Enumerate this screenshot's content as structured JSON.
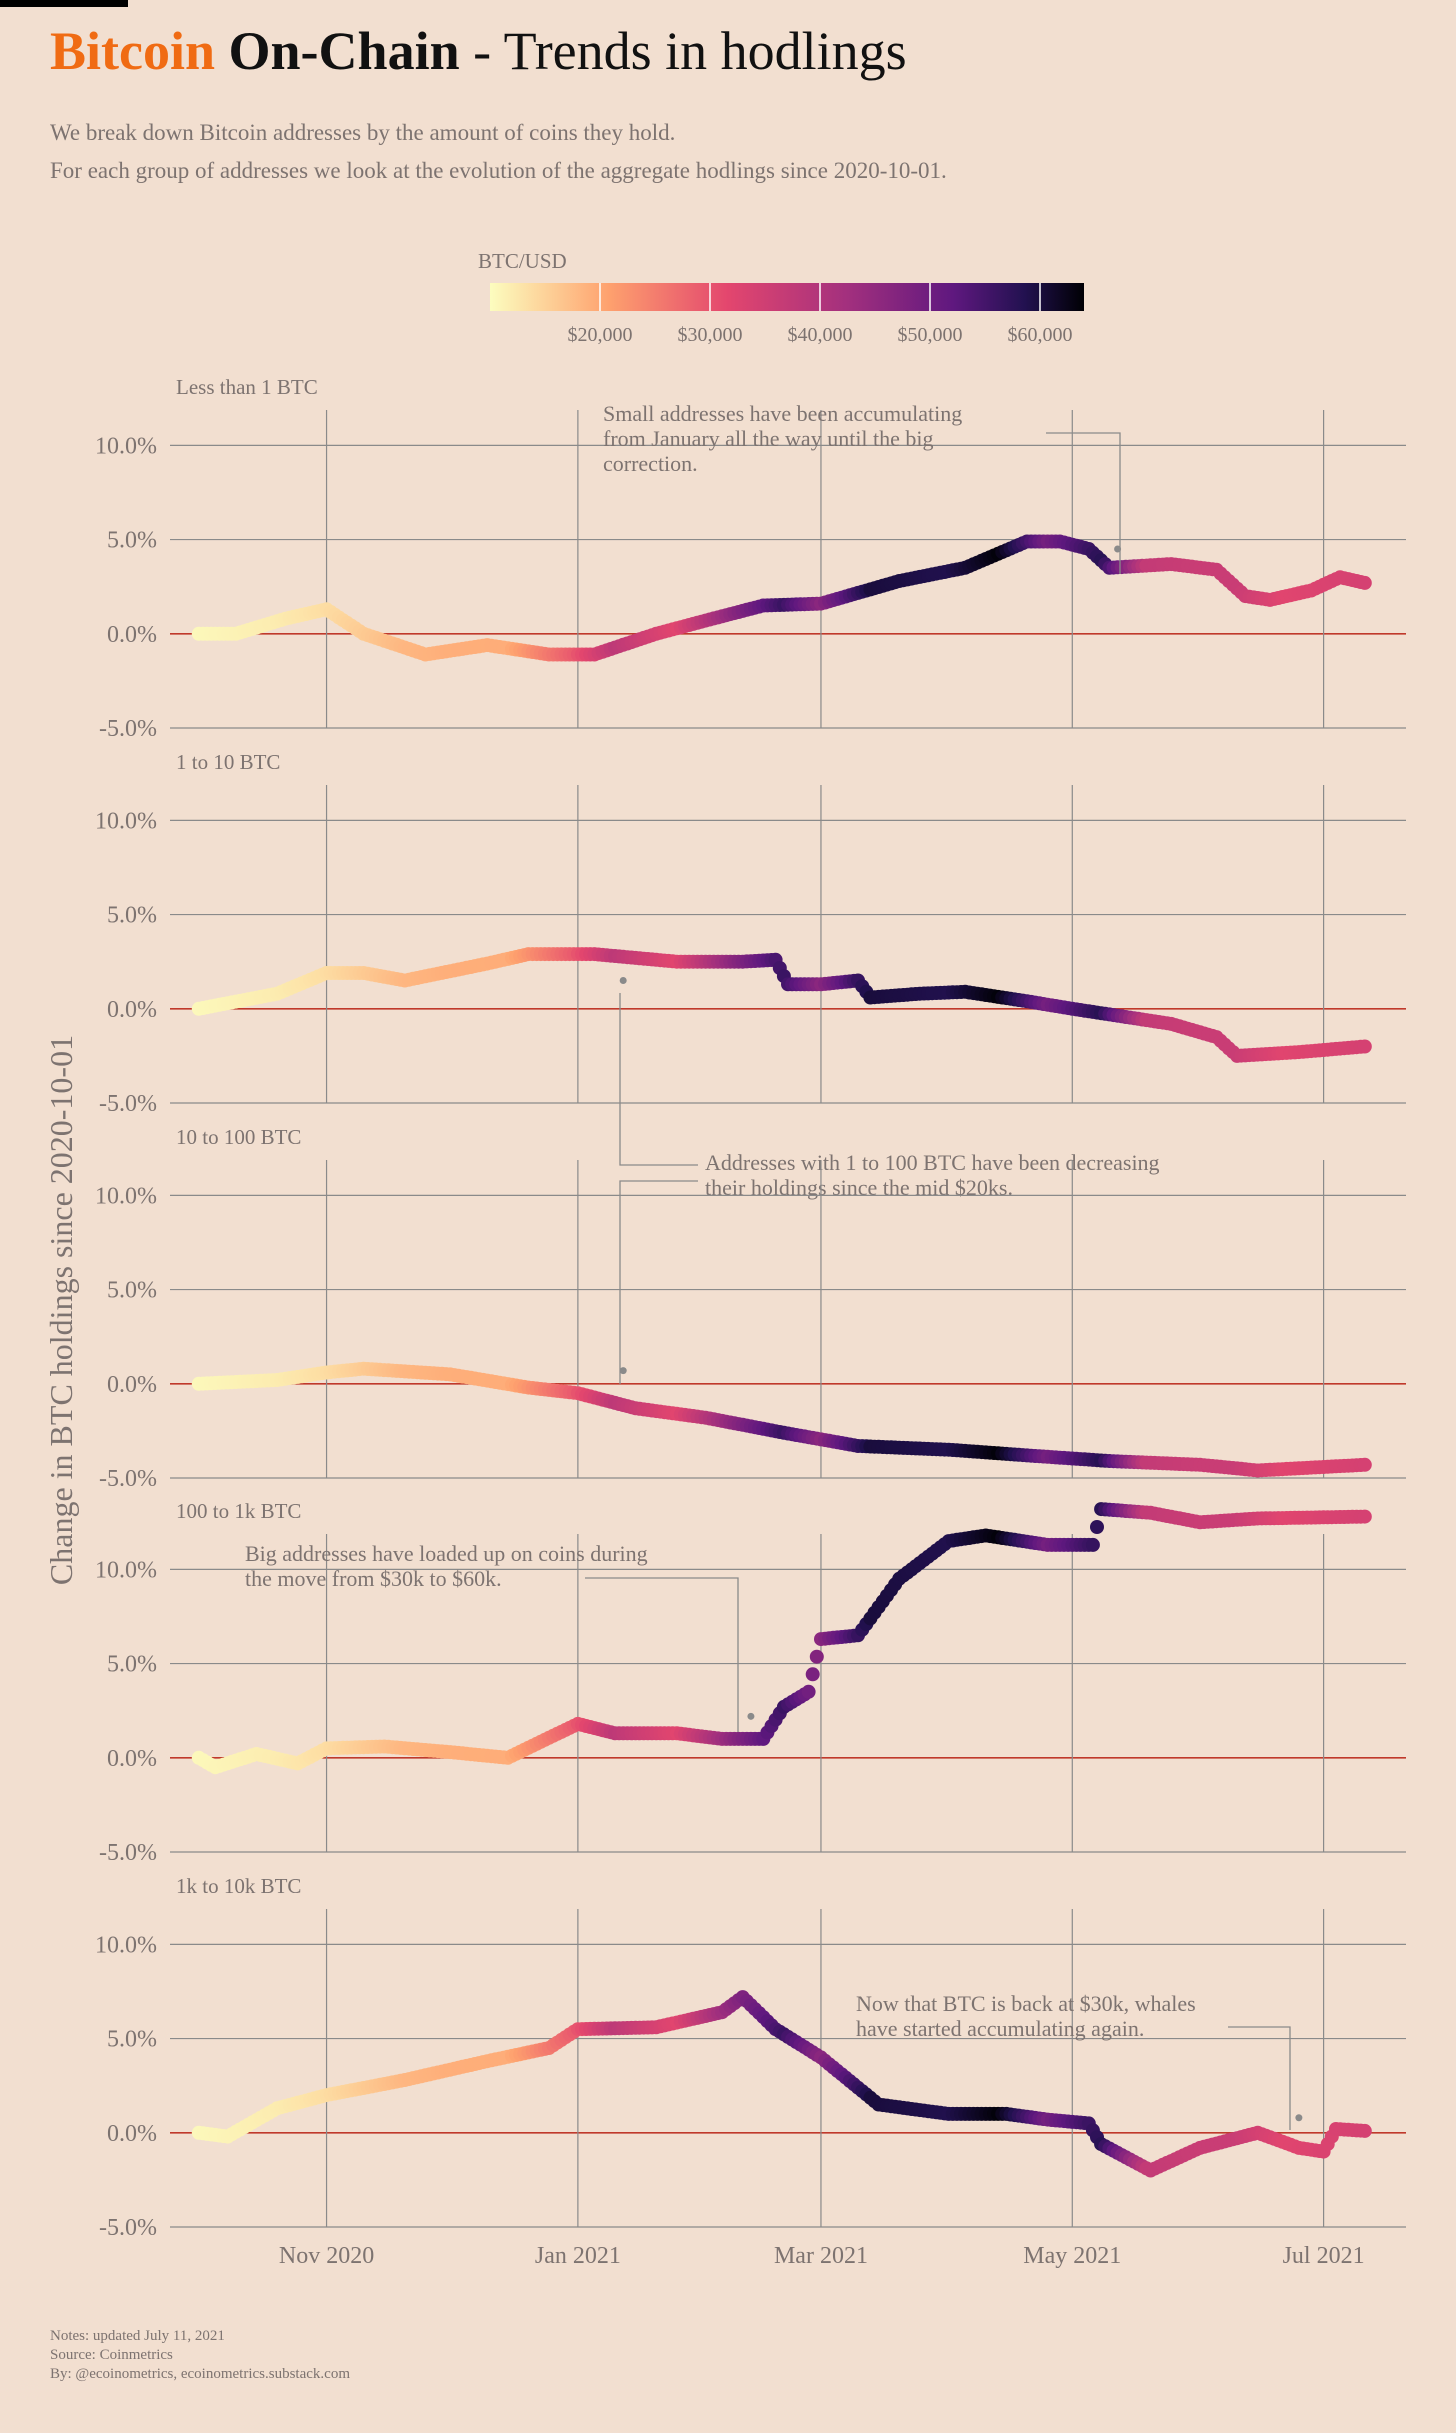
{
  "header": {
    "title_brand": "Bitcoin",
    "title_series": "On-Chain",
    "title_rest": " - Trends in hodlings",
    "subtitle_line1": "We break down Bitcoin addresses by the amount of coins they hold.",
    "subtitle_line2": "For each group of addresses we look at the evolution of the aggregate hodlings since 2020-10-01."
  },
  "footer": {
    "notes": "Notes: updated July 11, 2021",
    "source": "Source: Coinmetrics",
    "by": "By: @ecoinometrics, ecoinometrics.substack.com"
  },
  "colors": {
    "background": "#f2dfd0",
    "brand": "#f06b13",
    "zero_line": "#c0392b",
    "grid": "#8a8a8a",
    "muted_text": "#7d7370"
  },
  "chart_data": {
    "type": "scatter",
    "ylabel": "Change in BTC holdings since 2020-10-01",
    "color_scale": {
      "label": "BTC/USD",
      "palette": "magma-reversed",
      "range": [
        10000,
        64000
      ],
      "ticks": [
        "$20,000",
        "$30,000",
        "$40,000",
        "$50,000",
        "$60,000"
      ],
      "tick_values": [
        20000,
        30000,
        40000,
        50000,
        60000
      ]
    },
    "x_ticks": [
      "Nov 2020",
      "Jan 2021",
      "Mar 2021",
      "May 2021",
      "Jul 2021"
    ],
    "x_tick_dates": [
      "2020-11-01",
      "2021-01-01",
      "2021-03-01",
      "2021-05-01",
      "2021-07-01"
    ],
    "x_range": [
      "2020-09-24",
      "2021-07-21"
    ],
    "ylim": [
      -5,
      14
    ],
    "y_ticks": [
      "-5.0%",
      "0.0%",
      "5.0%",
      "10.0%"
    ],
    "y_tick_values": [
      -5,
      0,
      5,
      10
    ],
    "price_series": {
      "name": "BTC/USD",
      "points": [
        [
          "2020-10-01",
          10600
        ],
        [
          "2020-10-20",
          12000
        ],
        [
          "2020-11-01",
          13700
        ],
        [
          "2020-11-20",
          18200
        ],
        [
          "2020-12-01",
          19200
        ],
        [
          "2020-12-15",
          19400
        ],
        [
          "2020-12-31",
          29000
        ],
        [
          "2021-01-10",
          38000
        ],
        [
          "2021-01-25",
          32000
        ],
        [
          "2021-02-08",
          46000
        ],
        [
          "2021-02-20",
          56000
        ],
        [
          "2021-03-01",
          46000
        ],
        [
          "2021-03-13",
          60000
        ],
        [
          "2021-04-01",
          58800
        ],
        [
          "2021-04-13",
          63500
        ],
        [
          "2021-04-25",
          49000
        ],
        [
          "2021-05-08",
          58000
        ],
        [
          "2021-05-12",
          50000
        ],
        [
          "2021-05-19",
          37000
        ],
        [
          "2021-06-01",
          36000
        ],
        [
          "2021-06-10",
          36000
        ],
        [
          "2021-06-22",
          32000
        ],
        [
          "2021-07-05",
          33500
        ],
        [
          "2021-07-11",
          34000
        ]
      ]
    },
    "panels": [
      {
        "label": "Less than 1 BTC",
        "points": [
          [
            "2020-10-01",
            0
          ],
          [
            "2020-10-10",
            0
          ],
          [
            "2020-10-22",
            0.8
          ],
          [
            "2020-11-01",
            1.3
          ],
          [
            "2020-11-10",
            0
          ],
          [
            "2020-11-25",
            -1.1
          ],
          [
            "2020-12-10",
            -0.6
          ],
          [
            "2020-12-25",
            -1.1
          ],
          [
            "2021-01-05",
            -1.1
          ],
          [
            "2021-01-20",
            0
          ],
          [
            "2021-02-01",
            0.7
          ],
          [
            "2021-02-15",
            1.5
          ],
          [
            "2021-03-01",
            1.6
          ],
          [
            "2021-03-20",
            2.8
          ],
          [
            "2021-04-05",
            3.5
          ],
          [
            "2021-04-20",
            4.9
          ],
          [
            "2021-04-28",
            4.9
          ],
          [
            "2021-05-05",
            4.5
          ],
          [
            "2021-05-10",
            3.5
          ],
          [
            "2021-05-25",
            3.7
          ],
          [
            "2021-06-05",
            3.4
          ],
          [
            "2021-06-12",
            2
          ],
          [
            "2021-06-18",
            1.8
          ],
          [
            "2021-06-28",
            2.3
          ],
          [
            "2021-07-05",
            3
          ],
          [
            "2021-07-11",
            2.7
          ]
        ],
        "annotation": {
          "text_lines": [
            "Small addresses have been accumulating",
            "from January all the way until the big",
            "correction."
          ],
          "target": [
            "2021-05-12",
            4.5
          ]
        }
      },
      {
        "label": "1 to 10 BTC",
        "points": [
          [
            "2020-10-01",
            0
          ],
          [
            "2020-10-20",
            0.8
          ],
          [
            "2020-11-01",
            1.9
          ],
          [
            "2020-11-10",
            1.9
          ],
          [
            "2020-11-20",
            1.5
          ],
          [
            "2020-12-10",
            2.4
          ],
          [
            "2020-12-20",
            2.9
          ],
          [
            "2021-01-05",
            2.9
          ],
          [
            "2021-01-25",
            2.5
          ],
          [
            "2021-02-10",
            2.5
          ],
          [
            "2021-02-18",
            2.6
          ],
          [
            "2021-02-21",
            1.3
          ],
          [
            "2021-03-01",
            1.3
          ],
          [
            "2021-03-10",
            1.5
          ],
          [
            "2021-03-13",
            0.6
          ],
          [
            "2021-03-25",
            0.8
          ],
          [
            "2021-04-05",
            0.9
          ],
          [
            "2021-04-20",
            0.4
          ],
          [
            "2021-05-01",
            0
          ],
          [
            "2021-05-10",
            -0.3
          ],
          [
            "2021-05-25",
            -0.8
          ],
          [
            "2021-06-05",
            -1.5
          ],
          [
            "2021-06-10",
            -2.5
          ],
          [
            "2021-06-25",
            -2.3
          ],
          [
            "2021-07-11",
            -2
          ]
        ],
        "annotation": {
          "text_lines": [
            "Addresses with 1 to 100 BTC have been decreasing",
            "their holdings since the mid $20ks."
          ],
          "target": [
            "2021-01-12",
            1.5
          ]
        }
      },
      {
        "label": "10 to 100 BTC",
        "points": [
          [
            "2020-10-01",
            0
          ],
          [
            "2020-10-20",
            0.2
          ],
          [
            "2020-11-01",
            0.6
          ],
          [
            "2020-11-10",
            0.8
          ],
          [
            "2020-12-01",
            0.5
          ],
          [
            "2020-12-20",
            -0.2
          ],
          [
            "2021-01-01",
            -0.5
          ],
          [
            "2021-01-15",
            -1.3
          ],
          [
            "2021-02-01",
            -1.8
          ],
          [
            "2021-02-20",
            -2.6
          ],
          [
            "2021-03-10",
            -3.3
          ],
          [
            "2021-04-01",
            -3.5
          ],
          [
            "2021-04-20",
            -3.8
          ],
          [
            "2021-05-10",
            -4.1
          ],
          [
            "2021-06-01",
            -4.3
          ],
          [
            "2021-06-15",
            -4.6
          ],
          [
            "2021-07-11",
            -4.3
          ]
        ],
        "annotation": {
          "text_lines": [
            "Addresses with 1 to 100 BTC have been decreasing",
            "their holdings since the mid $20ks."
          ],
          "target": [
            "2021-01-12",
            0.7
          ]
        }
      },
      {
        "label": "100 to 1k BTC",
        "points": [
          [
            "2020-10-01",
            0
          ],
          [
            "2020-10-05",
            -0.5
          ],
          [
            "2020-10-15",
            0.2
          ],
          [
            "2020-10-25",
            -0.3
          ],
          [
            "2020-11-01",
            0.5
          ],
          [
            "2020-11-15",
            0.6
          ],
          [
            "2020-12-01",
            0.3
          ],
          [
            "2020-12-15",
            0
          ],
          [
            "2021-01-01",
            1.8
          ],
          [
            "2021-01-10",
            1.3
          ],
          [
            "2021-01-25",
            1.3
          ],
          [
            "2021-02-05",
            1
          ],
          [
            "2021-02-15",
            1
          ],
          [
            "2021-02-20",
            2.7
          ],
          [
            "2021-02-26",
            3.5
          ],
          [
            "2021-03-01",
            6.3
          ],
          [
            "2021-03-10",
            6.5
          ],
          [
            "2021-03-20",
            9.5
          ],
          [
            "2021-04-01",
            11.5
          ],
          [
            "2021-04-10",
            11.8
          ],
          [
            "2021-04-25",
            11.3
          ],
          [
            "2021-05-01",
            11.3
          ],
          [
            "2021-05-06",
            11.3
          ],
          [
            "2021-05-08",
            13.2
          ],
          [
            "2021-05-20",
            13
          ],
          [
            "2021-06-01",
            12.5
          ],
          [
            "2021-06-15",
            12.7
          ],
          [
            "2021-07-11",
            12.8
          ]
        ],
        "annotation": {
          "text_lines": [
            "Big addresses have loaded up on coins during",
            "the move from $30k to $60k."
          ],
          "target": [
            "2021-02-12",
            2.2
          ]
        }
      },
      {
        "label": "1k to 10k BTC",
        "points": [
          [
            "2020-10-01",
            0
          ],
          [
            "2020-10-08",
            -0.2
          ],
          [
            "2020-10-20",
            1.3
          ],
          [
            "2020-11-01",
            2
          ],
          [
            "2020-11-20",
            2.8
          ],
          [
            "2020-12-10",
            3.8
          ],
          [
            "2020-12-25",
            4.5
          ],
          [
            "2021-01-01",
            5.5
          ],
          [
            "2021-01-20",
            5.6
          ],
          [
            "2021-02-05",
            6.4
          ],
          [
            "2021-02-10",
            7.2
          ],
          [
            "2021-02-18",
            5.5
          ],
          [
            "2021-03-01",
            4
          ],
          [
            "2021-03-15",
            1.5
          ],
          [
            "2021-04-01",
            1
          ],
          [
            "2021-04-15",
            1
          ],
          [
            "2021-04-25",
            0.7
          ],
          [
            "2021-05-05",
            0.5
          ],
          [
            "2021-05-08",
            -0.6
          ],
          [
            "2021-05-20",
            -2
          ],
          [
            "2021-06-01",
            -0.8
          ],
          [
            "2021-06-15",
            0
          ],
          [
            "2021-06-25",
            -0.8
          ],
          [
            "2021-07-01",
            -1
          ],
          [
            "2021-07-04",
            0.2
          ],
          [
            "2021-07-11",
            0.1
          ]
        ],
        "annotation": {
          "text_lines": [
            "Now that BTC is back at $30k, whales",
            "have started accumulating again."
          ],
          "target": [
            "2021-06-25",
            0.8
          ]
        }
      }
    ]
  }
}
